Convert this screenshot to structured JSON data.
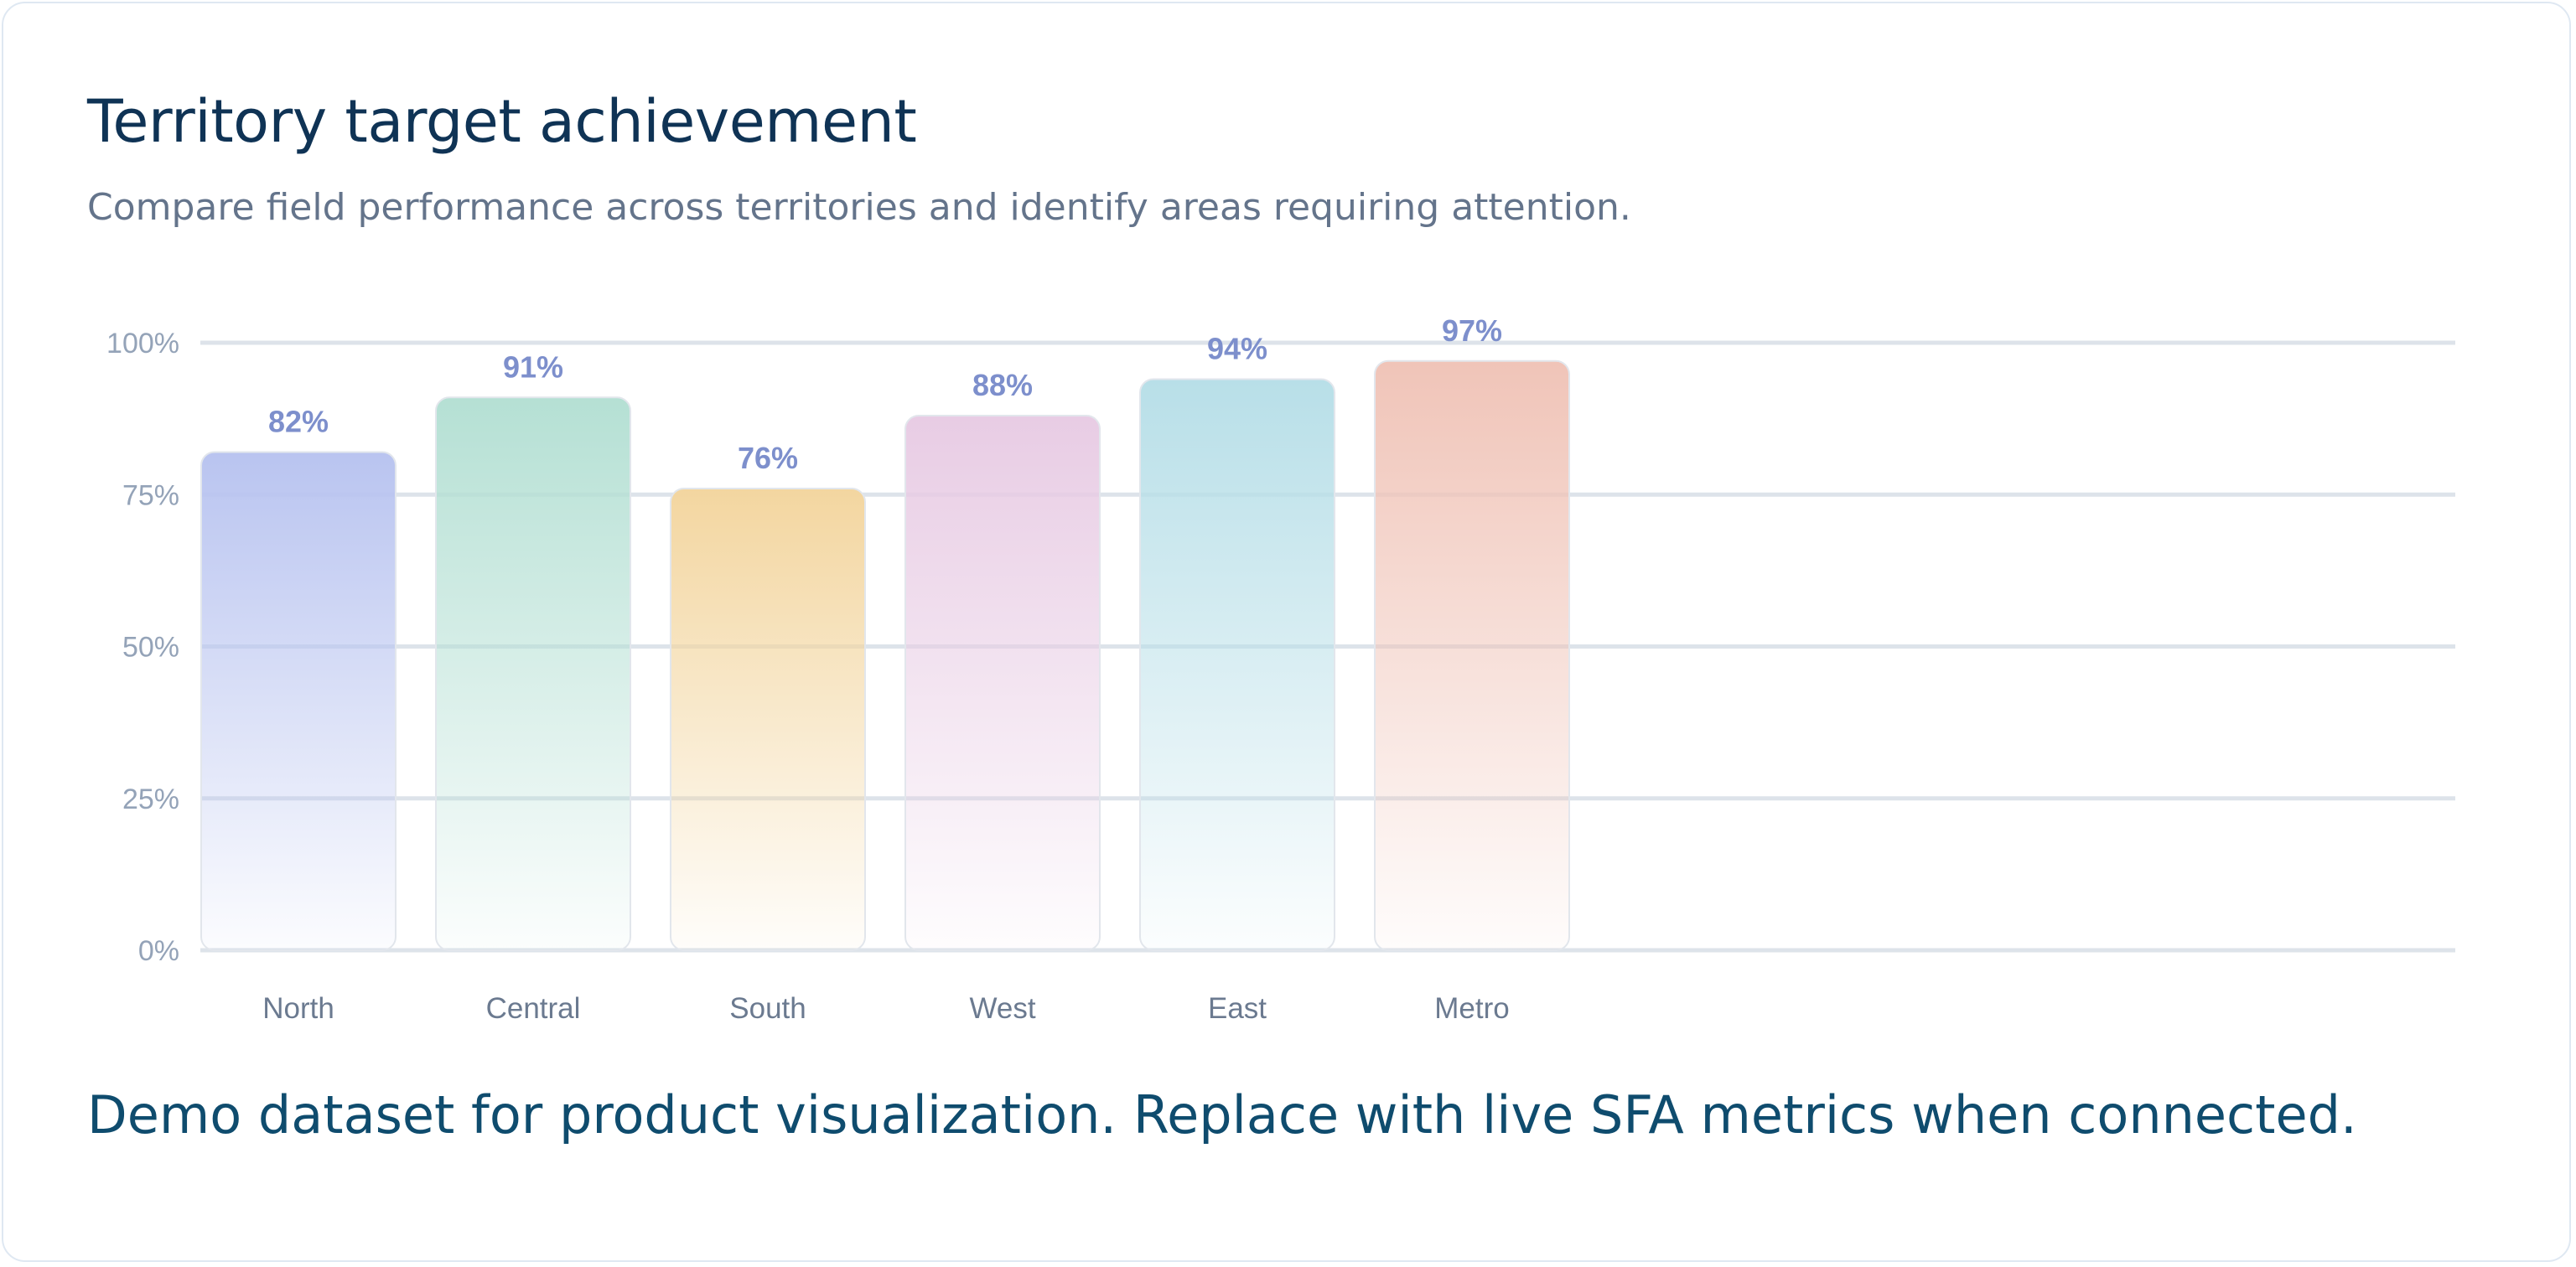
{
  "header": {
    "title": "Territory target achievement",
    "subtitle": "Compare field performance across territories and identify areas requiring attention."
  },
  "chart_data": {
    "type": "bar",
    "categories": [
      "North",
      "Central",
      "South",
      "West",
      "East",
      "Metro"
    ],
    "values": [
      82,
      91,
      76,
      88,
      94,
      97
    ],
    "value_labels": [
      "82%",
      "91%",
      "76%",
      "88%",
      "94%",
      "97%"
    ],
    "ylim": [
      0,
      100
    ],
    "y_ticks": [
      0,
      25,
      50,
      75,
      100
    ],
    "y_tick_labels": [
      "0%",
      "25%",
      "50%",
      "75%",
      "100%"
    ],
    "grid": true,
    "bar_colors": [
      "#b9c4f0",
      "#b5e0d4",
      "#f3d6a0",
      "#e8cce4",
      "#b8dfe8",
      "#f0c4b8"
    ],
    "title": "",
    "xlabel": "",
    "ylabel": ""
  },
  "footer": {
    "note": "Demo dataset for product visualization. Replace with live SFA metrics when connected."
  }
}
